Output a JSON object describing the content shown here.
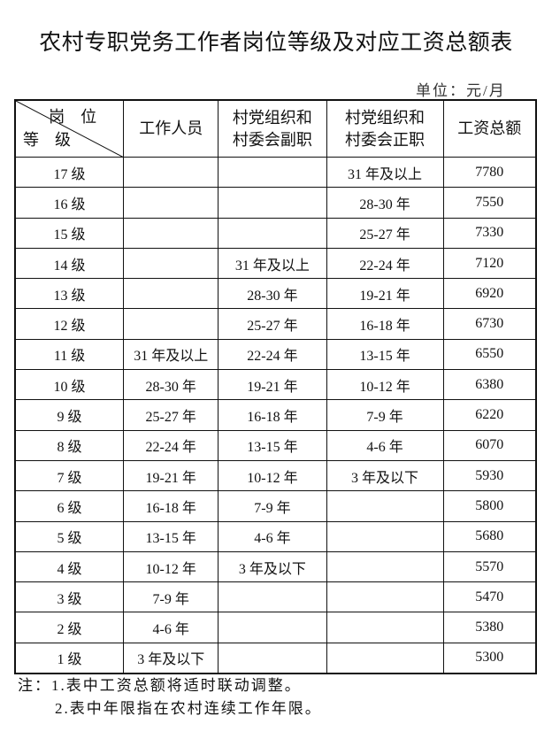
{
  "title": "农村专职党务工作者岗位等级及对应工资总额表",
  "unit": "单位：元/月",
  "header": {
    "corner_top": "岗位",
    "corner_bottom": "等级",
    "columns": [
      "工作人员",
      "村党组织和\n村委会副职",
      "村党组织和\n村委会正职",
      "工资总额"
    ]
  },
  "rows": [
    [
      "17 级",
      "",
      "",
      "31 年及以上",
      "7780"
    ],
    [
      "16 级",
      "",
      "",
      "28-30 年",
      "7550"
    ],
    [
      "15 级",
      "",
      "",
      "25-27 年",
      "7330"
    ],
    [
      "14 级",
      "",
      "31 年及以上",
      "22-24 年",
      "7120"
    ],
    [
      "13 级",
      "",
      "28-30 年",
      "19-21 年",
      "6920"
    ],
    [
      "12 级",
      "",
      "25-27 年",
      "16-18 年",
      "6730"
    ],
    [
      "11 级",
      "31 年及以上",
      "22-24 年",
      "13-15 年",
      "6550"
    ],
    [
      "10 级",
      "28-30 年",
      "19-21 年",
      "10-12 年",
      "6380"
    ],
    [
      "9 级",
      "25-27 年",
      "16-18 年",
      "7-9 年",
      "6220"
    ],
    [
      "8 级",
      "22-24 年",
      "13-15 年",
      "4-6 年",
      "6070"
    ],
    [
      "7 级",
      "19-21 年",
      "10-12 年",
      "3 年及以下",
      "5930"
    ],
    [
      "6 级",
      "16-18 年",
      "7-9 年",
      "",
      "5800"
    ],
    [
      "5 级",
      "13-15 年",
      "4-6 年",
      "",
      "5680"
    ],
    [
      "4 级",
      "10-12 年",
      "3 年及以下",
      "",
      "5570"
    ],
    [
      "3 级",
      "7-9 年",
      "",
      "",
      "5470"
    ],
    [
      "2 级",
      "4-6 年",
      "",
      "",
      "5380"
    ],
    [
      "1 级",
      "3 年及以下",
      "",
      "",
      "5300"
    ]
  ],
  "notes": [
    "注：1.表中工资总额将适时联动调整。",
    "2.表中年限指在农村连续工作年限。"
  ]
}
